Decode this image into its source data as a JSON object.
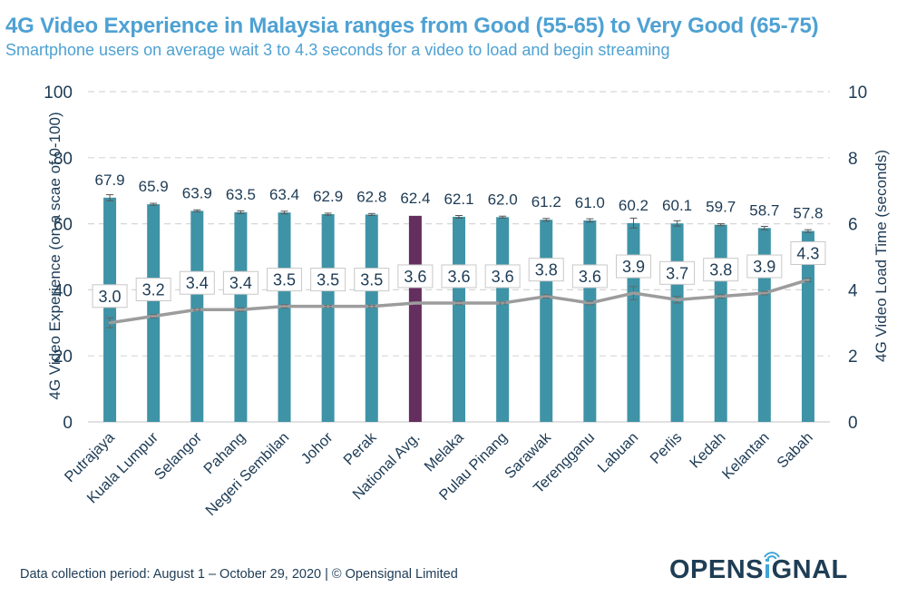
{
  "header": {
    "title": "4G Video Experience in Malaysia ranges from Good (55-65) to Very Good (65-75)",
    "subtitle": "Smartphone users on average wait 3 to 4.3 seconds for a video to load and begin streaming"
  },
  "footer": {
    "note": "Data collection period: August 1 – October 29, 2020 | © Opensignal Limited",
    "logo_pre": "OPENS",
    "logo_i": "i",
    "logo_post": "GNAL"
  },
  "colors": {
    "bar": "#3f93a6",
    "highlight_bar": "#642e5e",
    "line": "#9c9c9c",
    "text": "#1d3b55",
    "title": "#4ea1d3",
    "grid": "#d6d6d6"
  },
  "chart_data": {
    "type": "bar",
    "title": "4G Video Experience in Malaysia ranges from Good (55-65) to Very Good (65-75)",
    "subtitle": "Smartphone users on average wait 3 to 4.3 seconds for a video to load and begin streaming",
    "categories": [
      "Putrajaya",
      "Kuala Lumpur",
      "Selangor",
      "Pahang",
      "Negeri Sembilan",
      "Johor",
      "Perak",
      "National Avg.",
      "Melaka",
      "Pulau Pinang",
      "Sarawak",
      "Terengganu",
      "Labuan",
      "Perlis",
      "Kedah",
      "Kelantan",
      "Sabah"
    ],
    "highlight_category": "National Avg.",
    "series": [
      {
        "name": "4G Video Experience",
        "type": "bar",
        "axis": "left",
        "values": [
          67.9,
          65.9,
          63.9,
          63.5,
          63.4,
          62.9,
          62.8,
          62.4,
          62.1,
          62.0,
          61.2,
          61.0,
          60.2,
          60.1,
          59.7,
          58.7,
          57.8
        ],
        "error": [
          0.9,
          0.3,
          0.3,
          0.4,
          0.4,
          0.3,
          0.3,
          0,
          0.4,
          0.3,
          0.4,
          0.5,
          1.5,
          0.8,
          0.3,
          0.5,
          0.4
        ]
      },
      {
        "name": "4G Video Load Time",
        "type": "line",
        "axis": "right",
        "values": [
          3.0,
          3.2,
          3.4,
          3.4,
          3.5,
          3.5,
          3.5,
          3.6,
          3.6,
          3.6,
          3.8,
          3.6,
          3.9,
          3.7,
          3.8,
          3.9,
          4.3
        ],
        "error": [
          0.15,
          0.05,
          0.03,
          0.05,
          0.05,
          0.03,
          0.03,
          0,
          0.05,
          0.03,
          0.05,
          0.05,
          0.2,
          0.1,
          0.05,
          0.05,
          0.05
        ]
      }
    ],
    "ylabel": "4G Video Experience (on a scae of 0-100)",
    "y2label": "4G Video Load Time (seconds)",
    "ylim": [
      0,
      100
    ],
    "y2lim": [
      0,
      10
    ],
    "yticks": [
      "0",
      "20",
      "40",
      "60",
      "80",
      "100"
    ],
    "y2ticks": [
      "0",
      "2",
      "4",
      "6",
      "8",
      "10"
    ],
    "grid": true,
    "legend": "none"
  }
}
